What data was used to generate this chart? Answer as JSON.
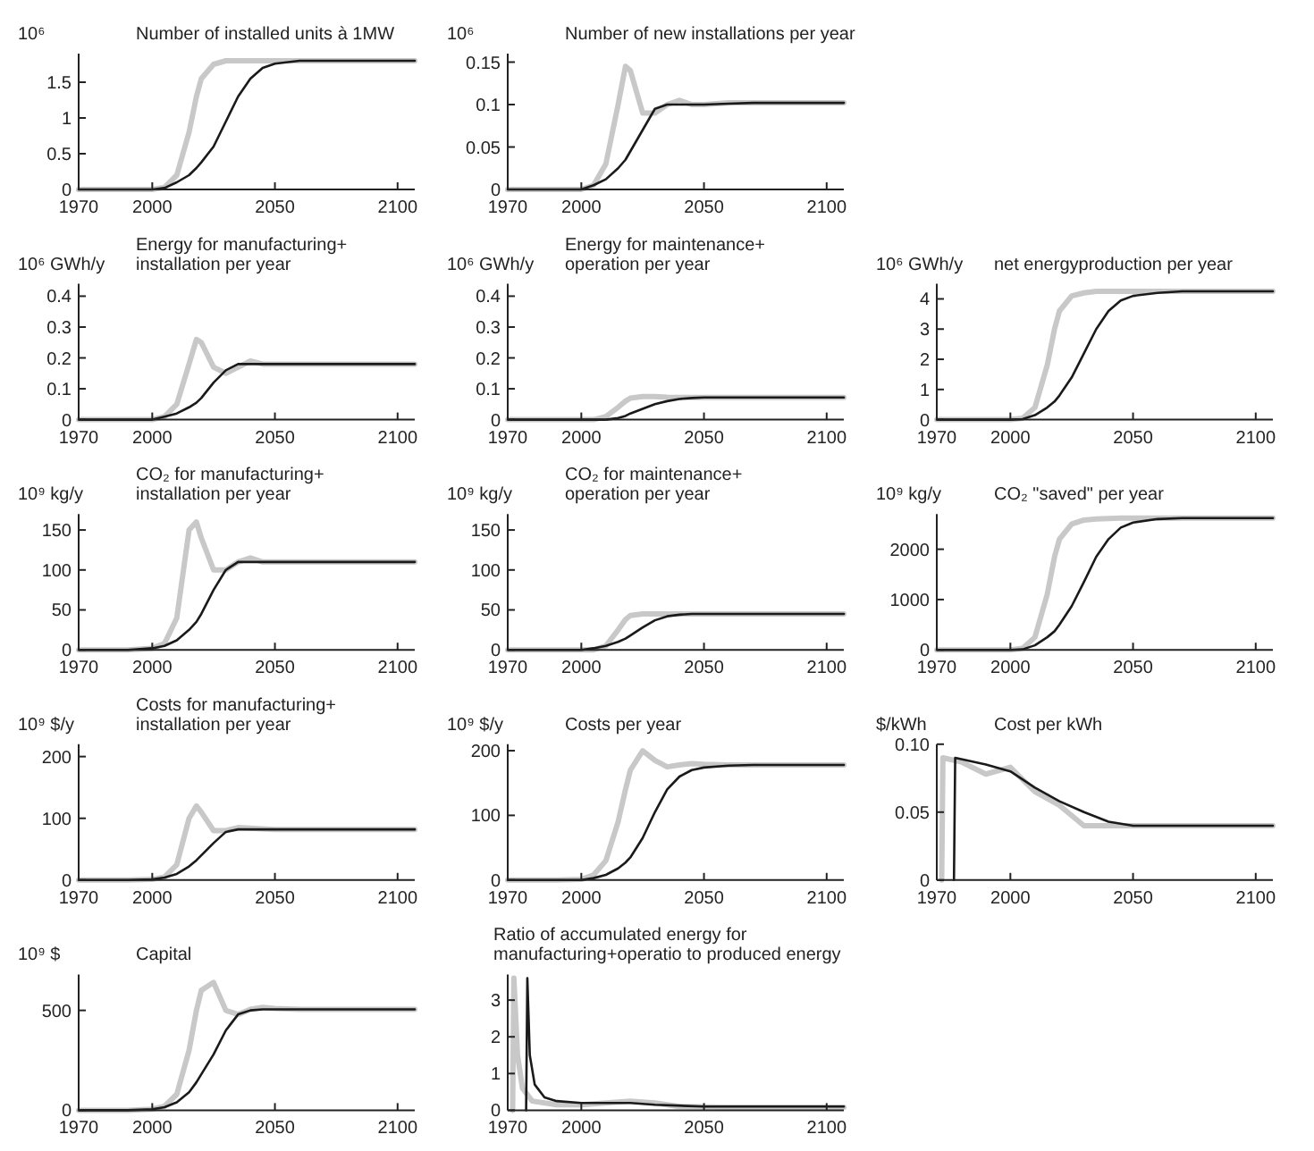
{
  "chart_data": [
    {
      "type": "line",
      "title": "Number of installed units à 1MW",
      "ylabel": "10⁶",
      "xlim": [
        1970,
        2107
      ],
      "xticks": [
        1970,
        2000,
        2050,
        2100
      ],
      "ylim": [
        0,
        1.9
      ],
      "yticks": [
        0,
        0.5,
        1,
        1.5
      ],
      "x": [
        1970,
        1990,
        2000,
        2005,
        2010,
        2015,
        2018,
        2020,
        2025,
        2030,
        2035,
        2040,
        2045,
        2050,
        2060,
        2070,
        2080,
        2090,
        2107
      ],
      "series": [
        {
          "color": "#c8c8c8",
          "values": [
            0,
            0,
            0,
            0.03,
            0.2,
            0.8,
            1.3,
            1.55,
            1.75,
            1.8,
            1.8,
            1.8,
            1.8,
            1.8,
            1.8,
            1.8,
            1.8,
            1.8,
            1.8
          ]
        },
        {
          "color": "#1a1a1a",
          "values": [
            0,
            0,
            0,
            0.02,
            0.1,
            0.2,
            0.3,
            0.38,
            0.6,
            0.95,
            1.3,
            1.55,
            1.7,
            1.76,
            1.8,
            1.8,
            1.8,
            1.8,
            1.8
          ]
        }
      ]
    },
    {
      "type": "line",
      "title": "Number of new installations per year",
      "ylabel": "10⁶",
      "xlim": [
        1970,
        2107
      ],
      "xticks": [
        1970,
        2000,
        2050,
        2100
      ],
      "ylim": [
        0,
        0.16
      ],
      "yticks": [
        0,
        0.05,
        0.1,
        0.15
      ],
      "x": [
        1970,
        1990,
        2000,
        2005,
        2010,
        2015,
        2018,
        2020,
        2025,
        2030,
        2035,
        2040,
        2045,
        2050,
        2060,
        2070,
        2080,
        2090,
        2107
      ],
      "series": [
        {
          "color": "#c8c8c8",
          "values": [
            0,
            0,
            0,
            0.005,
            0.03,
            0.1,
            0.145,
            0.14,
            0.09,
            0.09,
            0.1,
            0.105,
            0.1,
            0.1,
            0.102,
            0.102,
            0.102,
            0.102,
            0.102
          ]
        },
        {
          "color": "#1a1a1a",
          "values": [
            0,
            0,
            0,
            0.005,
            0.012,
            0.025,
            0.035,
            0.045,
            0.07,
            0.095,
            0.1,
            0.1,
            0.1,
            0.1,
            0.101,
            0.102,
            0.102,
            0.102,
            0.102
          ]
        }
      ]
    },
    {
      "type": "line",
      "title": "Energy for manufacturing+\ninstallation per year",
      "ylabel": "10⁶  GWh/y",
      "xlim": [
        1970,
        2107
      ],
      "xticks": [
        1970,
        2000,
        2050,
        2100
      ],
      "ylim": [
        0,
        0.44
      ],
      "yticks": [
        0,
        0.1,
        0.2,
        0.3,
        0.4
      ],
      "x": [
        1970,
        1990,
        2000,
        2005,
        2010,
        2015,
        2018,
        2020,
        2025,
        2030,
        2035,
        2040,
        2045,
        2050,
        2060,
        2070,
        2080,
        2090,
        2107
      ],
      "series": [
        {
          "color": "#c8c8c8",
          "values": [
            0,
            0,
            0,
            0.01,
            0.05,
            0.18,
            0.26,
            0.25,
            0.17,
            0.15,
            0.17,
            0.19,
            0.18,
            0.18,
            0.18,
            0.18,
            0.18,
            0.18,
            0.18
          ]
        },
        {
          "color": "#1a1a1a",
          "values": [
            0,
            0,
            0,
            0.01,
            0.02,
            0.04,
            0.055,
            0.07,
            0.12,
            0.16,
            0.18,
            0.18,
            0.18,
            0.18,
            0.18,
            0.18,
            0.18,
            0.18,
            0.18
          ]
        }
      ]
    },
    {
      "type": "line",
      "title": "Energy for maintenance+\noperation per year",
      "ylabel": "10⁶  GWh/y",
      "xlim": [
        1970,
        2107
      ],
      "xticks": [
        1970,
        2000,
        2050,
        2100
      ],
      "ylim": [
        0,
        0.44
      ],
      "yticks": [
        0,
        0.1,
        0.2,
        0.3,
        0.4
      ],
      "x": [
        1970,
        1990,
        2000,
        2005,
        2010,
        2015,
        2018,
        2020,
        2025,
        2030,
        2035,
        2040,
        2045,
        2050,
        2060,
        2070,
        2080,
        2090,
        2107
      ],
      "series": [
        {
          "color": "#c8c8c8",
          "values": [
            0,
            0,
            0,
            0,
            0.01,
            0.04,
            0.06,
            0.07,
            0.075,
            0.075,
            0.073,
            0.072,
            0.072,
            0.072,
            0.072,
            0.072,
            0.072,
            0.072,
            0.072
          ]
        },
        {
          "color": "#1a1a1a",
          "values": [
            0,
            0,
            0,
            0,
            0,
            0.005,
            0.012,
            0.02,
            0.035,
            0.05,
            0.06,
            0.067,
            0.07,
            0.072,
            0.072,
            0.072,
            0.072,
            0.072,
            0.072
          ]
        }
      ]
    },
    {
      "type": "line",
      "title": "net energyproduction per year",
      "ylabel": "10⁶ GWh/y",
      "xlim": [
        1970,
        2107
      ],
      "xticks": [
        1970,
        2000,
        2050,
        2100
      ],
      "ylim": [
        0,
        4.5
      ],
      "yticks": [
        0,
        1,
        2,
        3,
        4
      ],
      "x": [
        1970,
        1990,
        2000,
        2005,
        2010,
        2015,
        2018,
        2020,
        2025,
        2030,
        2035,
        2040,
        2045,
        2050,
        2060,
        2070,
        2080,
        2090,
        2107
      ],
      "series": [
        {
          "color": "#c8c8c8",
          "values": [
            0,
            0,
            0,
            0.05,
            0.4,
            1.8,
            3,
            3.6,
            4.1,
            4.2,
            4.25,
            4.25,
            4.25,
            4.25,
            4.25,
            4.25,
            4.25,
            4.25,
            4.25
          ]
        },
        {
          "color": "#1a1a1a",
          "values": [
            0,
            0,
            0,
            0.02,
            0.15,
            0.4,
            0.6,
            0.8,
            1.4,
            2.2,
            3,
            3.6,
            3.95,
            4.1,
            4.2,
            4.25,
            4.25,
            4.25,
            4.25
          ]
        }
      ]
    },
    {
      "type": "line",
      "title": "CO₂ for manufacturing+\ninstallation per year",
      "ylabel": "10⁹ kg/y",
      "xlim": [
        1970,
        2107
      ],
      "xticks": [
        1970,
        2000,
        2050,
        2100
      ],
      "ylim": [
        0,
        170
      ],
      "yticks": [
        0,
        50,
        100,
        150
      ],
      "x": [
        1970,
        1990,
        2000,
        2005,
        2010,
        2015,
        2018,
        2020,
        2025,
        2030,
        2035,
        2040,
        2045,
        2050,
        2060,
        2070,
        2080,
        2090,
        2107
      ],
      "series": [
        {
          "color": "#c8c8c8",
          "values": [
            0,
            0,
            2,
            8,
            40,
            150,
            160,
            140,
            100,
            100,
            110,
            115,
            110,
            110,
            110,
            110,
            110,
            110,
            110
          ]
        },
        {
          "color": "#1a1a1a",
          "values": [
            0,
            0,
            2,
            5,
            12,
            25,
            35,
            45,
            75,
            100,
            110,
            110,
            110,
            110,
            110,
            110,
            110,
            110,
            110
          ]
        }
      ]
    },
    {
      "type": "line",
      "title": "CO₂ for maintenance+\noperation per year",
      "ylabel": "10⁹ kg/y",
      "xlim": [
        1970,
        2107
      ],
      "xticks": [
        1970,
        2000,
        2050,
        2100
      ],
      "ylim": [
        0,
        170
      ],
      "yticks": [
        0,
        50,
        100,
        150
      ],
      "x": [
        1970,
        1990,
        2000,
        2005,
        2010,
        2015,
        2018,
        2020,
        2025,
        2030,
        2035,
        2040,
        2045,
        2050,
        2060,
        2070,
        2080,
        2090,
        2107
      ],
      "series": [
        {
          "color": "#c8c8c8",
          "values": [
            0,
            0,
            0,
            0,
            5,
            25,
            38,
            43,
            45,
            45,
            45,
            45,
            45,
            45,
            45,
            45,
            45,
            45,
            45
          ]
        },
        {
          "color": "#1a1a1a",
          "values": [
            0,
            0,
            0,
            2,
            5,
            10,
            14,
            18,
            28,
            37,
            42,
            44,
            45,
            45,
            45,
            45,
            45,
            45,
            45
          ]
        }
      ]
    },
    {
      "type": "line",
      "title": "CO₂ \"saved\" per year",
      "ylabel": "10⁹ kg/y",
      "xlim": [
        1970,
        2107
      ],
      "xticks": [
        1970,
        2000,
        2050,
        2100
      ],
      "ylim": [
        0,
        2700
      ],
      "yticks": [
        0,
        1000,
        2000
      ],
      "x": [
        1970,
        1990,
        2000,
        2005,
        2010,
        2015,
        2018,
        2020,
        2025,
        2030,
        2035,
        2040,
        2045,
        2050,
        2060,
        2070,
        2080,
        2090,
        2107
      ],
      "series": [
        {
          "color": "#c8c8c8",
          "values": [
            0,
            0,
            0,
            30,
            250,
            1100,
            1850,
            2200,
            2500,
            2580,
            2600,
            2610,
            2620,
            2620,
            2620,
            2620,
            2620,
            2620,
            2620
          ]
        },
        {
          "color": "#1a1a1a",
          "values": [
            0,
            0,
            0,
            10,
            90,
            250,
            370,
            500,
            870,
            1350,
            1850,
            2200,
            2430,
            2530,
            2600,
            2620,
            2620,
            2620,
            2620
          ]
        }
      ]
    },
    {
      "type": "line",
      "title": "Costs for manufacturing+\ninstallation per year",
      "ylabel": "10⁹ $/y",
      "xlim": [
        1970,
        2107
      ],
      "xticks": [
        1970,
        2000,
        2050,
        2100
      ],
      "ylim": [
        0,
        220
      ],
      "yticks": [
        0,
        100,
        200
      ],
      "x": [
        1970,
        1990,
        2000,
        2005,
        2010,
        2015,
        2018,
        2020,
        2025,
        2030,
        2035,
        2040,
        2045,
        2050,
        2060,
        2070,
        2080,
        2090,
        2107
      ],
      "series": [
        {
          "color": "#c8c8c8",
          "values": [
            0,
            0,
            1,
            5,
            25,
            100,
            120,
            110,
            80,
            80,
            85,
            84,
            83,
            82,
            82,
            82,
            82,
            82,
            82
          ]
        },
        {
          "color": "#1a1a1a",
          "values": [
            0,
            0,
            1,
            4,
            10,
            22,
            32,
            40,
            60,
            78,
            82,
            82,
            82,
            82,
            82,
            82,
            82,
            82,
            82
          ]
        }
      ]
    },
    {
      "type": "line",
      "title": "Costs per year",
      "ylabel": "10⁹ $/y",
      "xlim": [
        1970,
        2107
      ],
      "xticks": [
        1970,
        2000,
        2050,
        2100
      ],
      "ylim": [
        0,
        210
      ],
      "yticks": [
        0,
        100,
        200
      ],
      "x": [
        1970,
        1990,
        2000,
        2005,
        2010,
        2015,
        2018,
        2020,
        2025,
        2030,
        2035,
        2040,
        2045,
        2050,
        2060,
        2070,
        2080,
        2090,
        2107
      ],
      "series": [
        {
          "color": "#c8c8c8",
          "values": [
            0,
            0,
            1,
            8,
            30,
            90,
            140,
            170,
            200,
            185,
            175,
            178,
            180,
            179,
            178,
            178,
            178,
            178,
            178
          ]
        },
        {
          "color": "#1a1a1a",
          "values": [
            0,
            0,
            0,
            3,
            8,
            18,
            27,
            35,
            65,
            105,
            140,
            160,
            170,
            174,
            177,
            178,
            178,
            178,
            178
          ]
        }
      ]
    },
    {
      "type": "line",
      "title": "Cost per kWh",
      "ylabel": "$/kWh",
      "xlim": [
        1970,
        2107
      ],
      "xticks": [
        1970,
        2000,
        2050,
        2100
      ],
      "ylim": [
        0,
        0.1
      ],
      "yticks": [
        0,
        0.05,
        {
          "value": 0.1,
          "label": "0.10"
        }
      ],
      "series": [
        {
          "color": "#c8c8c8",
          "x": [
            1972,
            1972.5,
            1980,
            1990,
            2000,
            2010,
            2020,
            2030,
            2040,
            2060,
            2107
          ],
          "values": [
            0,
            0.09,
            0.087,
            0.078,
            0.083,
            0.065,
            0.055,
            0.04,
            0.04,
            0.04,
            0.04
          ]
        },
        {
          "color": "#1a1a1a",
          "x": [
            1977,
            1977.5,
            1990,
            2000,
            2010,
            2020,
            2030,
            2040,
            2050,
            2107
          ],
          "values": [
            0,
            0.09,
            0.085,
            0.08,
            0.068,
            0.058,
            0.05,
            0.043,
            0.04,
            0.04
          ]
        }
      ]
    },
    {
      "type": "line",
      "title": "Capital",
      "ylabel": "10⁹ $",
      "xlim": [
        1970,
        2107
      ],
      "xticks": [
        1970,
        2000,
        2050,
        2100
      ],
      "ylim": [
        0,
        680
      ],
      "yticks": [
        0,
        500
      ],
      "x": [
        1970,
        1990,
        2000,
        2005,
        2010,
        2015,
        2018,
        2020,
        2025,
        2030,
        2035,
        2040,
        2045,
        2050,
        2060,
        2070,
        2080,
        2090,
        2107
      ],
      "series": [
        {
          "color": "#c8c8c8",
          "values": [
            0,
            0,
            5,
            20,
            80,
            300,
            500,
            600,
            640,
            500,
            480,
            505,
            515,
            510,
            505,
            505,
            505,
            505,
            505
          ]
        },
        {
          "color": "#1a1a1a",
          "values": [
            0,
            0,
            5,
            15,
            40,
            90,
            140,
            180,
            280,
            400,
            480,
            500,
            505,
            505,
            505,
            505,
            505,
            505,
            505
          ]
        }
      ]
    },
    {
      "type": "line",
      "title": "Ratio of accumulated energy for\nmanufacturing+operatio to produced energy",
      "xlim": [
        1970,
        2107
      ],
      "xticks": [
        1970,
        2000,
        2050,
        2100
      ],
      "ylim": [
        0,
        3.7
      ],
      "yticks": [
        0,
        1,
        2,
        3
      ],
      "series": [
        {
          "color": "#c8c8c8",
          "x": [
            1972,
            1972.5,
            1974,
            1976,
            1980,
            1990,
            2000,
            2010,
            2020,
            2030,
            2040,
            2060,
            2107
          ],
          "values": [
            0,
            3.6,
            1.5,
            0.6,
            0.25,
            0.15,
            0.15,
            0.2,
            0.25,
            0.2,
            0.1,
            0.08,
            0.08
          ]
        },
        {
          "color": "#1a1a1a",
          "x": [
            1977.5,
            1978,
            1979,
            1981,
            1985,
            1990,
            2000,
            2010,
            2020,
            2030,
            2050,
            2107
          ],
          "values": [
            0,
            3.6,
            1.5,
            0.7,
            0.35,
            0.25,
            0.2,
            0.2,
            0.2,
            0.15,
            0.1,
            0.1
          ]
        }
      ]
    }
  ]
}
